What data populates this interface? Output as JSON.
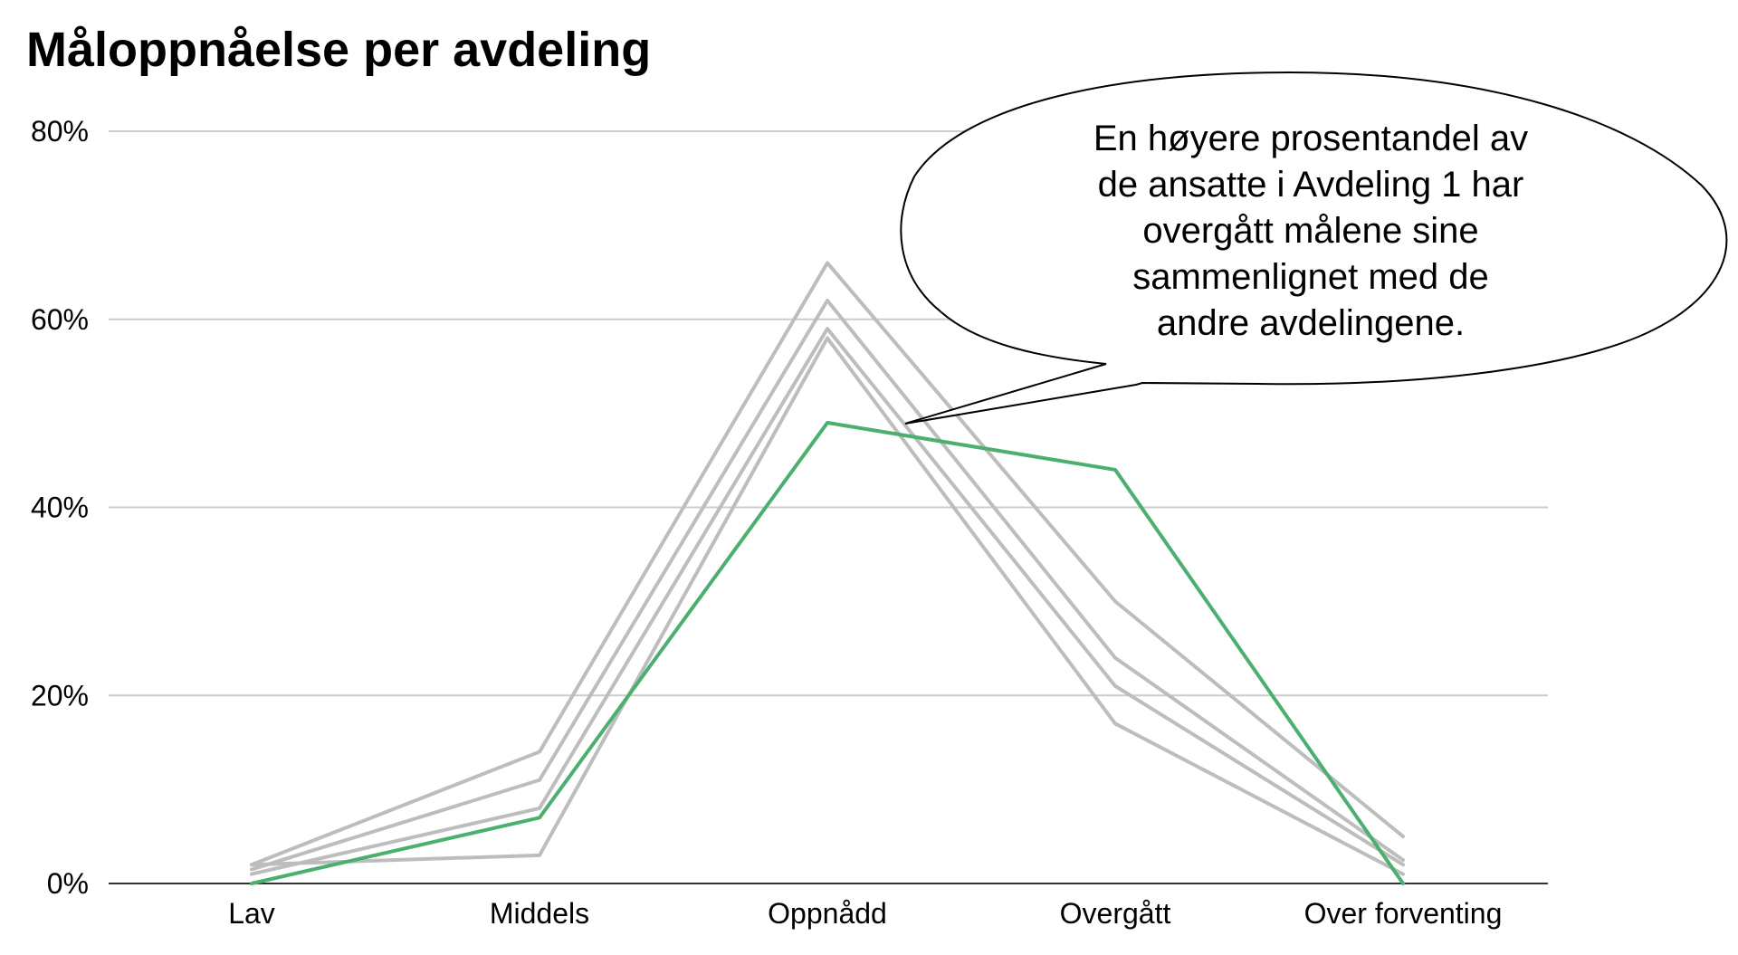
{
  "chart_data": {
    "type": "line",
    "title": "Måloppnåelse per avdeling",
    "xlabel": "",
    "ylabel": "",
    "categories": [
      "Lav",
      "Middels",
      "Oppnådd",
      "Overgått",
      "Over forventing"
    ],
    "y_ticks": [
      "0%",
      "20%",
      "40%",
      "60%",
      "80%"
    ],
    "ylim": [
      0,
      80
    ],
    "y_unit": "%",
    "grid": true,
    "legend": "none",
    "series": [
      {
        "values": [
          2,
          14,
          66,
          30,
          5
        ],
        "color": "#bdbdbd"
      },
      {
        "values": [
          1.5,
          11,
          62,
          24,
          2.5
        ],
        "color": "#bdbdbd"
      },
      {
        "values": [
          1,
          8,
          59,
          21,
          2
        ],
        "color": "#bdbdbd"
      },
      {
        "values": [
          2,
          3,
          58,
          17,
          1
        ],
        "color": "#bdbdbd"
      },
      {
        "values": [
          0,
          7,
          49,
          44,
          0
        ],
        "color": "#4caf6e"
      }
    ],
    "annotation": {
      "lines": [
        "En høyere prosentandel av",
        "de ansatte i Avdeling 1 har",
        "overgått målene sine",
        "sammenlignet med de",
        "andre avdelingene."
      ]
    }
  }
}
